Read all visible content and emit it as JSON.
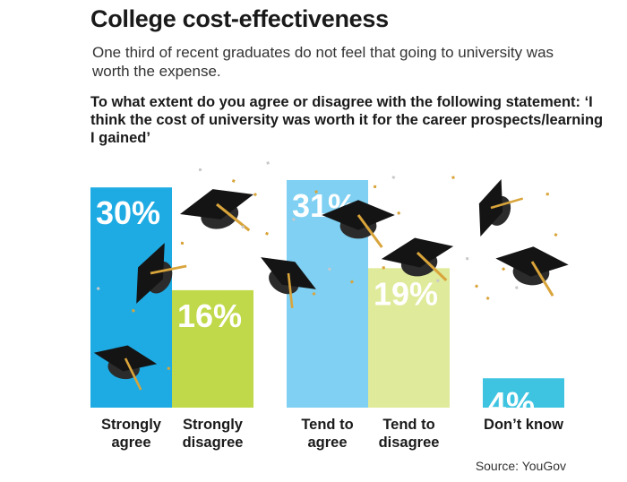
{
  "chart_data": {
    "type": "bar",
    "title": "College cost-effectiveness",
    "subtitle": "One third of recent graduates do not feel that going to university was worth the expense.",
    "question": "To what extent do you agree or disagree with the following statement: ‘I think the cost of university was worth it for the career prospects/learning I gained’",
    "categories": [
      "Strongly agree",
      "Strongly disagree",
      "Tend to agree",
      "Tend to disagree",
      "Don’t know"
    ],
    "values": [
      30,
      16,
      31,
      19,
      4
    ],
    "value_labels": [
      "30%",
      "16%",
      "31%",
      "19%",
      "4%"
    ],
    "bar_colors": [
      "#1eabe3",
      "#bfd94a",
      "#7fd0f2",
      "#dfea9a",
      "#3ec4e0"
    ],
    "ylim": [
      0,
      31
    ],
    "xlabel": "",
    "ylabel": "",
    "grid": false,
    "source": "Source: YouGov",
    "decoration": "graduation-cap-icon"
  }
}
